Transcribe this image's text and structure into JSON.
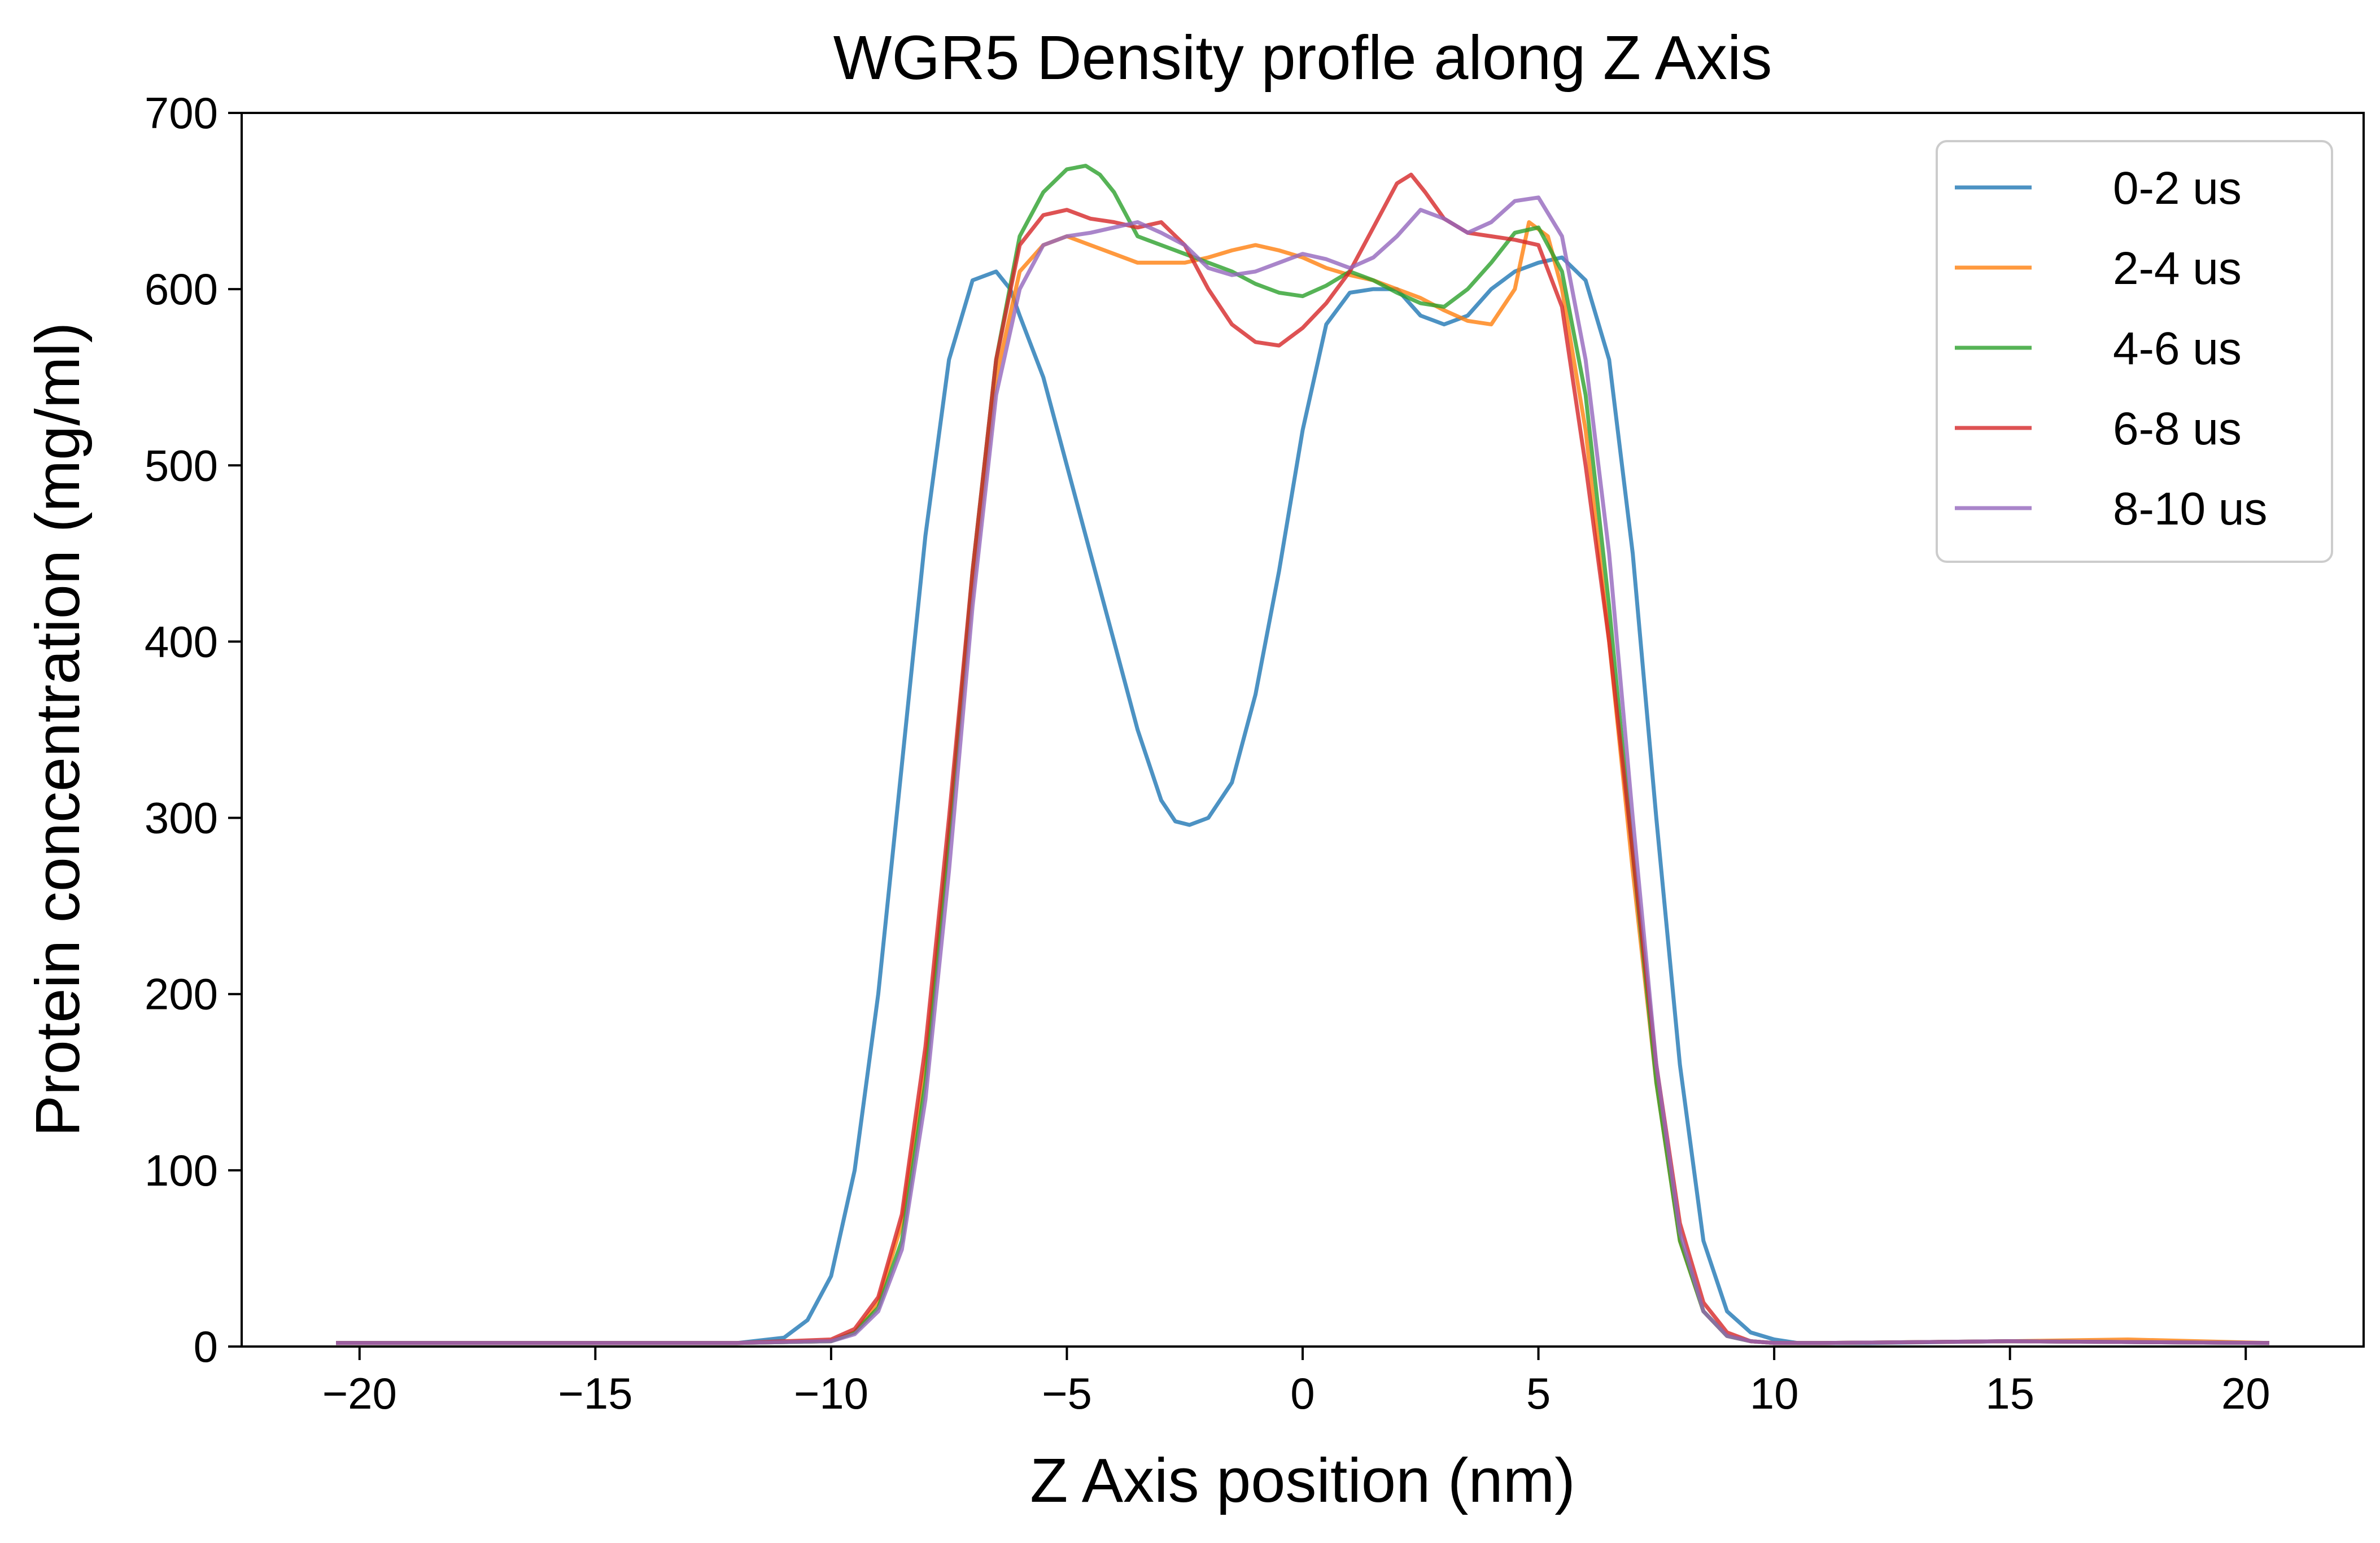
{
  "chart_data": {
    "type": "line",
    "title": "WGR5 Density profle along Z Axis",
    "xlabel": "Z Axis position (nm)",
    "ylabel": "Protein concentration (mg/ml)",
    "xlim": [
      -22.5,
      22.5
    ],
    "ylim": [
      0,
      700
    ],
    "xticks": [
      -20,
      -15,
      -10,
      -5,
      0,
      5,
      10,
      15,
      20
    ],
    "xtick_labels": [
      "−20",
      "−15",
      "−10",
      "−5",
      "0",
      "5",
      "10",
      "15",
      "20"
    ],
    "yticks": [
      0,
      100,
      200,
      300,
      400,
      500,
      600,
      700
    ],
    "ytick_labels": [
      "0",
      "100",
      "200",
      "300",
      "400",
      "500",
      "600",
      "700"
    ],
    "grid": false,
    "legend_position": "top-right",
    "series": [
      {
        "name": "0-2 us",
        "color": "#1f77b4",
        "x": [
          -20.5,
          -15,
          -12,
          -11,
          -10.5,
          -10,
          -9.5,
          -9,
          -8.5,
          -8,
          -7.5,
          -7,
          -6.5,
          -6.2,
          -6,
          -5.5,
          -5,
          -4.5,
          -4,
          -3.5,
          -3,
          -2.7,
          -2.4,
          -2,
          -1.5,
          -1,
          -0.5,
          0,
          0.5,
          1,
          1.5,
          2,
          2.5,
          3,
          3.5,
          4,
          4.5,
          5,
          5.5,
          6,
          6.5,
          7,
          7.5,
          8,
          8.5,
          9,
          9.5,
          10,
          10.5,
          11,
          12,
          15,
          20.5
        ],
        "y": [
          2,
          2,
          2,
          5,
          15,
          40,
          100,
          200,
          330,
          460,
          560,
          605,
          610,
          600,
          585,
          550,
          500,
          450,
          400,
          350,
          310,
          298,
          296,
          300,
          320,
          370,
          440,
          520,
          580,
          598,
          600,
          600,
          585,
          580,
          585,
          600,
          610,
          615,
          618,
          605,
          560,
          450,
          300,
          160,
          60,
          20,
          8,
          4,
          2,
          2,
          2,
          3,
          2
        ]
      },
      {
        "name": "2-4 us",
        "color": "#ff7f0e",
        "x": [
          -20.5,
          -15,
          -12,
          -10,
          -9.5,
          -9,
          -8.5,
          -8,
          -7.5,
          -7,
          -6.5,
          -6,
          -5.5,
          -5,
          -4.5,
          -4,
          -3.5,
          -3,
          -2.5,
          -2,
          -1.5,
          -1,
          -0.5,
          0,
          0.5,
          1,
          1.5,
          2,
          2.5,
          3,
          3.5,
          4,
          4.5,
          4.8,
          5.2,
          5.5,
          6,
          6.5,
          7,
          7.5,
          8,
          8.5,
          9,
          9.5,
          10,
          11,
          15,
          17.5,
          20.5
        ],
        "y": [
          2,
          2,
          2,
          3,
          8,
          25,
          70,
          160,
          290,
          430,
          550,
          610,
          625,
          630,
          625,
          620,
          615,
          615,
          615,
          618,
          622,
          625,
          622,
          618,
          612,
          608,
          605,
          600,
          595,
          588,
          582,
          580,
          600,
          638,
          630,
          600,
          520,
          400,
          270,
          150,
          60,
          20,
          6,
          3,
          2,
          2,
          3,
          4,
          2
        ]
      },
      {
        "name": "4-6 us",
        "color": "#2ca02c",
        "x": [
          -20.5,
          -15,
          -12,
          -10,
          -9.5,
          -9,
          -8.5,
          -8,
          -7.5,
          -7,
          -6.5,
          -6,
          -5.5,
          -5,
          -4.6,
          -4.3,
          -4,
          -3.5,
          -3,
          -2.5,
          -2,
          -1.5,
          -1,
          -0.5,
          0,
          0.5,
          1,
          1.5,
          2,
          2.5,
          3,
          3.5,
          4,
          4.5,
          5,
          5.5,
          6,
          6.5,
          7,
          7.5,
          8,
          8.5,
          9,
          9.5,
          10,
          11,
          15,
          20.5
        ],
        "y": [
          2,
          2,
          2,
          3,
          8,
          22,
          60,
          150,
          290,
          440,
          560,
          630,
          655,
          668,
          670,
          665,
          655,
          630,
          625,
          620,
          615,
          610,
          603,
          598,
          596,
          602,
          610,
          605,
          598,
          592,
          590,
          600,
          615,
          632,
          635,
          610,
          540,
          420,
          280,
          150,
          60,
          20,
          6,
          3,
          2,
          2,
          3,
          2
        ]
      },
      {
        "name": "6-8 us",
        "color": "#d62728",
        "x": [
          -20.5,
          -15,
          -12,
          -10,
          -9.5,
          -9,
          -8.5,
          -8,
          -7.5,
          -7,
          -6.5,
          -6,
          -5.5,
          -5,
          -4.5,
          -4,
          -3.5,
          -3,
          -2.5,
          -2,
          -1.5,
          -1,
          -0.5,
          0,
          0.5,
          1,
          1.5,
          2,
          2.3,
          2.6,
          3,
          3.5,
          4,
          4.5,
          5,
          5.5,
          6,
          6.5,
          7,
          7.5,
          8,
          8.5,
          9,
          9.5,
          10,
          11,
          15,
          20.5
        ],
        "y": [
          2,
          2,
          2,
          4,
          10,
          28,
          75,
          170,
          300,
          440,
          560,
          625,
          642,
          645,
          640,
          638,
          635,
          638,
          625,
          600,
          580,
          570,
          568,
          578,
          592,
          610,
          635,
          660,
          665,
          655,
          640,
          632,
          630,
          628,
          625,
          590,
          500,
          400,
          280,
          160,
          70,
          25,
          8,
          3,
          2,
          2,
          3,
          2
        ]
      },
      {
        "name": "8-10 us",
        "color": "#9467bd",
        "x": [
          -20.5,
          -15,
          -12,
          -10,
          -9.5,
          -9,
          -8.5,
          -8,
          -7.5,
          -7,
          -6.5,
          -6,
          -5.5,
          -5,
          -4.5,
          -4,
          -3.5,
          -3,
          -2.5,
          -2,
          -1.5,
          -1,
          -0.5,
          0,
          0.5,
          1,
          1.5,
          2,
          2.5,
          3,
          3.5,
          4,
          4.5,
          5,
          5.5,
          6,
          6.5,
          7,
          7.5,
          8,
          8.5,
          9,
          9.5,
          10,
          11,
          15,
          20.5
        ],
        "y": [
          2,
          2,
          2,
          3,
          7,
          20,
          55,
          140,
          270,
          420,
          540,
          600,
          625,
          630,
          632,
          635,
          638,
          632,
          625,
          612,
          608,
          610,
          615,
          620,
          617,
          612,
          618,
          630,
          645,
          640,
          632,
          638,
          650,
          652,
          630,
          560,
          450,
          300,
          160,
          65,
          20,
          6,
          3,
          2,
          2,
          3,
          2
        ]
      }
    ]
  }
}
